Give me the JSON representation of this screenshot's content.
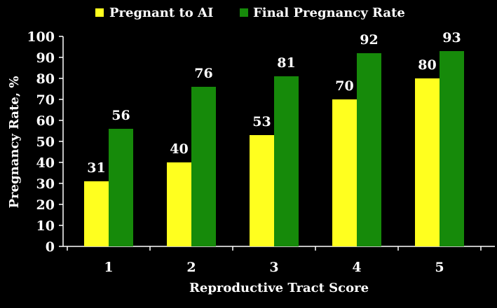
{
  "chart_data": {
    "type": "bar",
    "title": "",
    "xlabel": "Reproductive Tract Score",
    "ylabel": "Pregnancy Rate, %",
    "categories": [
      "1",
      "2",
      "3",
      "4",
      "5"
    ],
    "ylim": [
      0,
      100
    ],
    "yticks": [
      0,
      10,
      20,
      30,
      40,
      50,
      60,
      70,
      80,
      90,
      100
    ],
    "grid": false,
    "legend_position": "top",
    "series": [
      {
        "name": "Pregnant to AI",
        "color": "#ffff1f",
        "values": [
          31,
          40,
          53,
          70,
          80
        ]
      },
      {
        "name": "Final Pregnancy Rate",
        "color": "#168a0a",
        "values": [
          56,
          76,
          81,
          92,
          93
        ]
      }
    ]
  },
  "colors": {
    "background": "#000000",
    "text": "#ffffff",
    "axis": "#ffffff"
  }
}
